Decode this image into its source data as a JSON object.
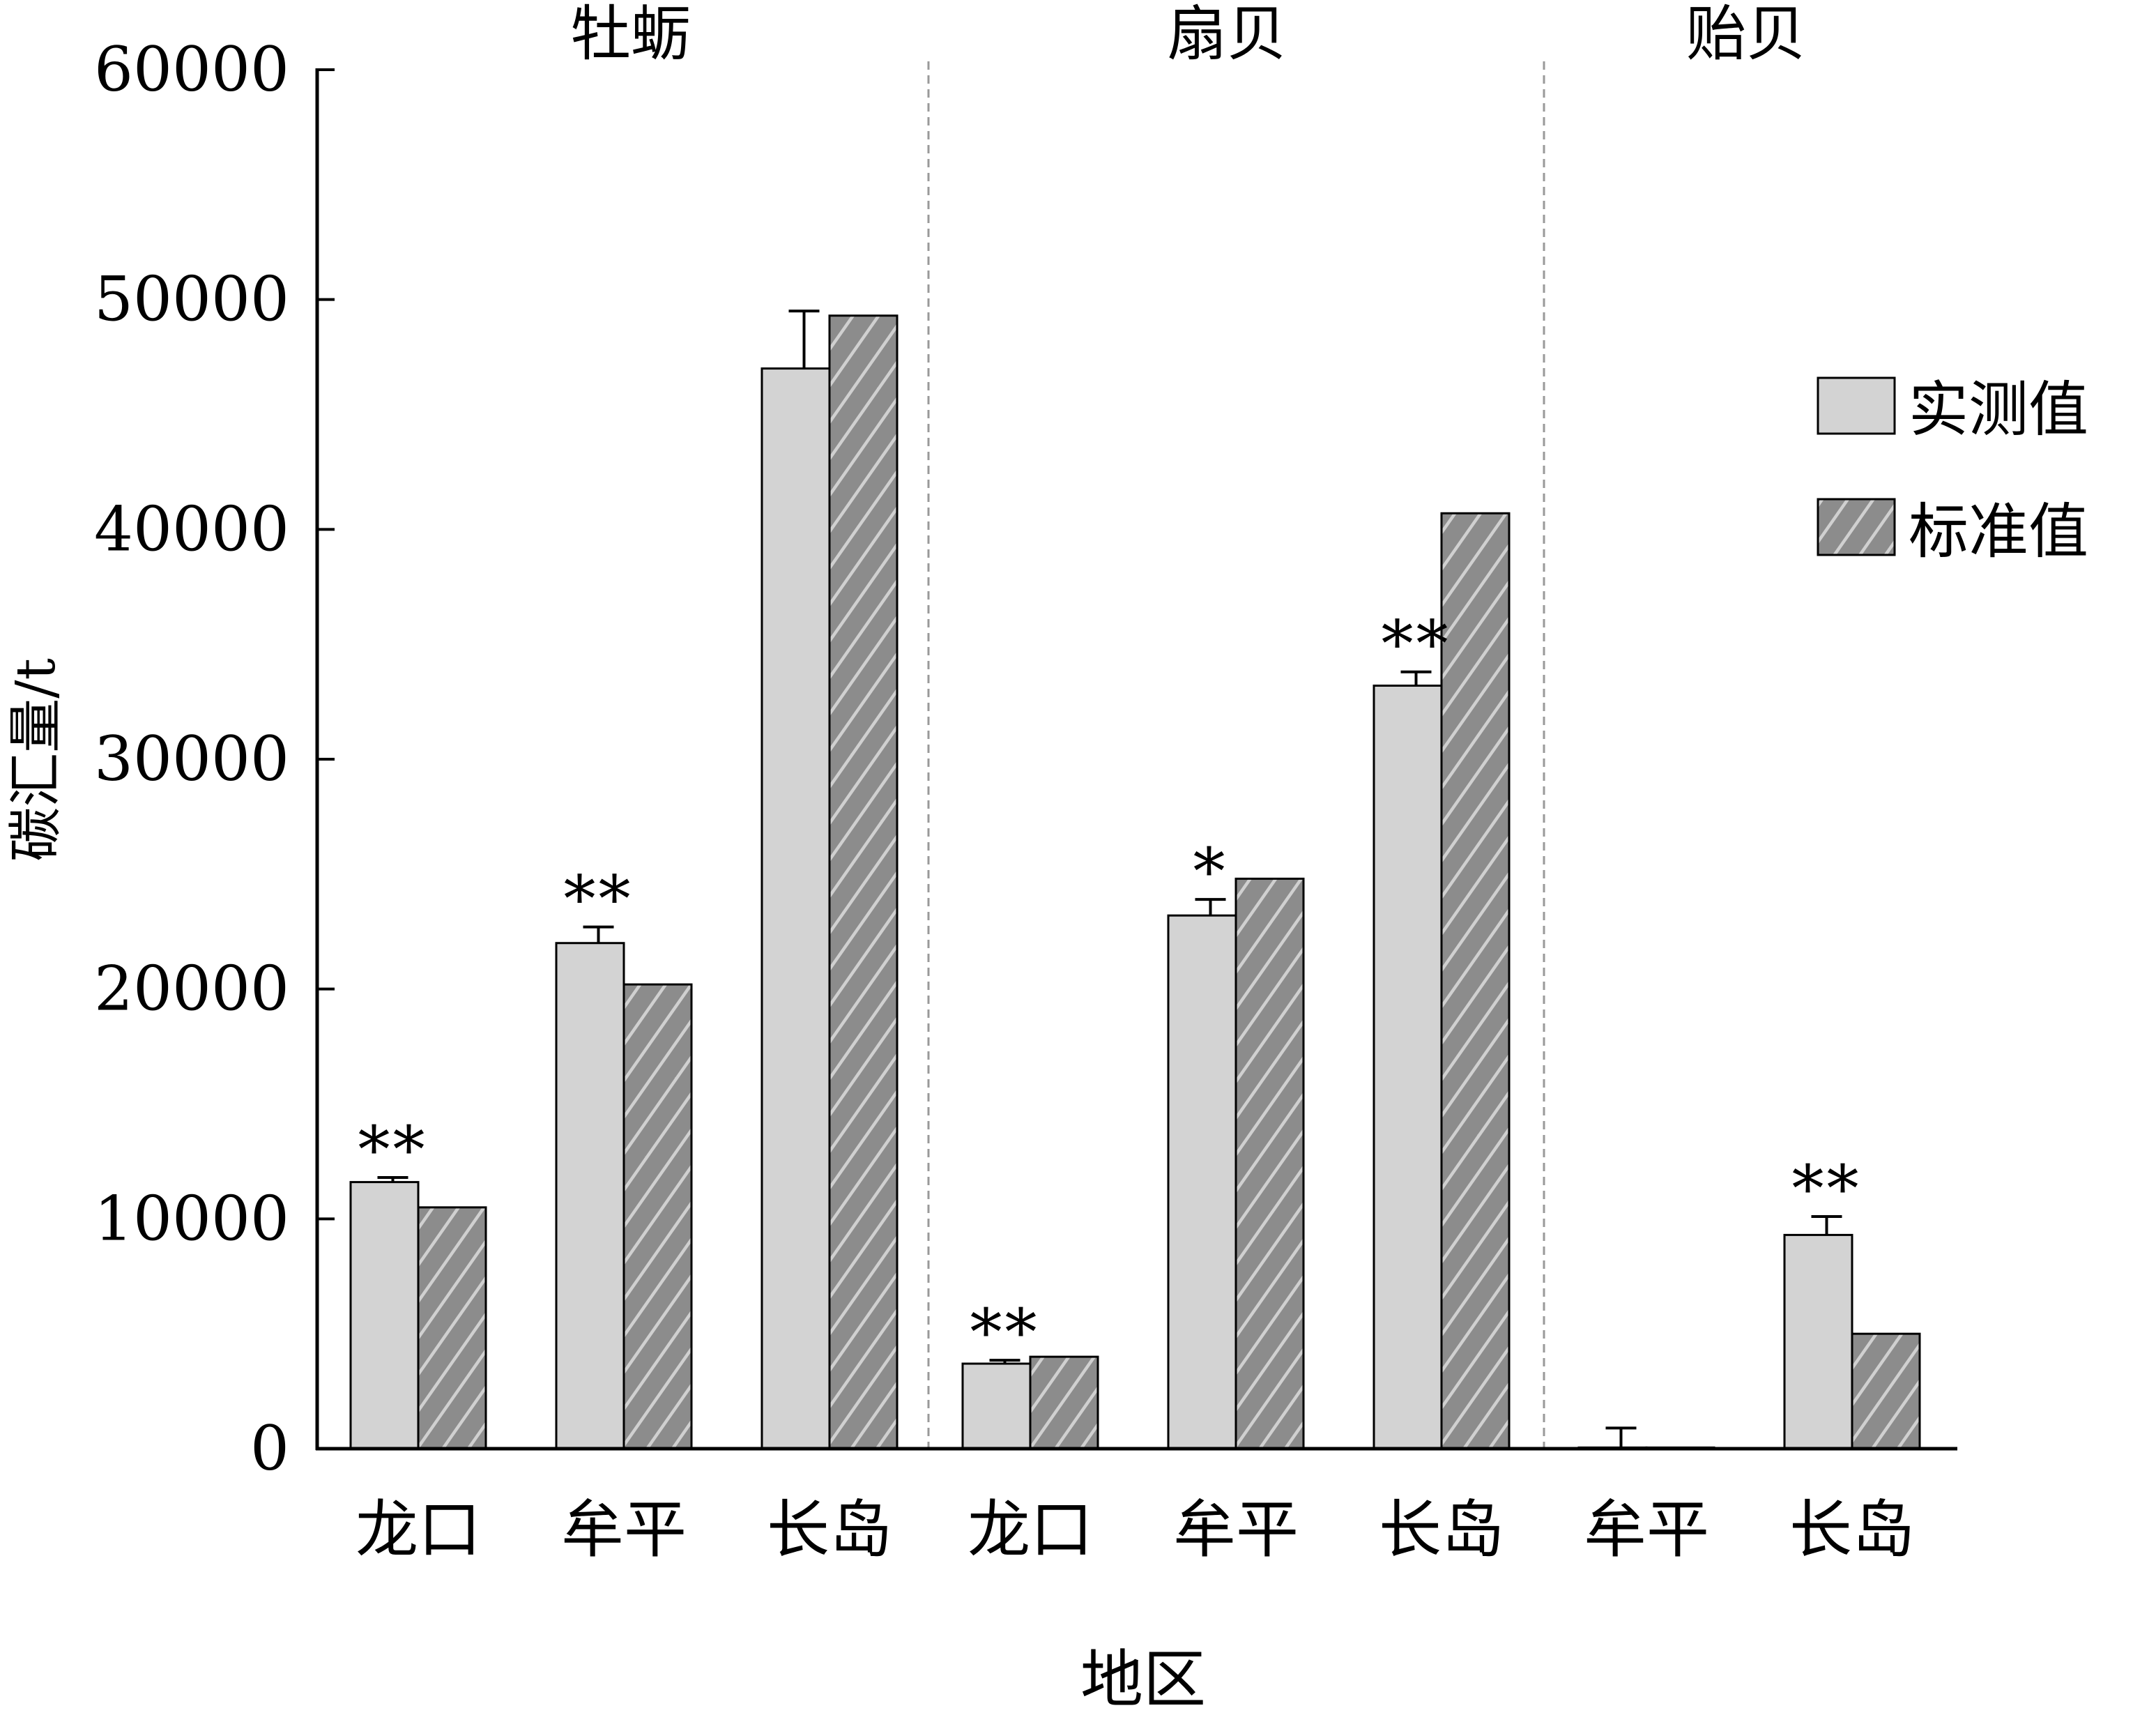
{
  "chart_data": {
    "type": "bar",
    "ylabel": "碳汇量/t",
    "xlabel": "地区",
    "ylim": [
      0,
      60000
    ],
    "yticks": [
      0,
      10000,
      20000,
      30000,
      40000,
      50000,
      60000
    ],
    "ytick_labels": [
      "0",
      "10000",
      "20000",
      "30000",
      "40000",
      "50000",
      "60000"
    ],
    "groups": [
      {
        "label": "牡蛎",
        "categories": [
          "龙口",
          "牟平",
          "长岛"
        ]
      },
      {
        "label": "扇贝",
        "categories": [
          "龙口",
          "牟平",
          "长岛"
        ]
      },
      {
        "label": "贻贝",
        "categories": [
          "牟平",
          "长岛"
        ]
      }
    ],
    "series": [
      {
        "name": "实测值",
        "values": [
          11600,
          22000,
          47000,
          3700,
          23200,
          33200,
          50,
          9300
        ],
        "errors": [
          200,
          700,
          2500,
          150,
          700,
          600,
          850,
          800
        ]
      },
      {
        "name": "标准值",
        "values": [
          10500,
          20200,
          49300,
          4000,
          24800,
          40700,
          50,
          5000
        ]
      }
    ],
    "significance": [
      "**",
      "**",
      "",
      "**",
      "*",
      "**",
      "",
      "**"
    ],
    "legend_position": "right",
    "grid": false,
    "colors": {
      "measured": "#d3d3d3",
      "standard": "#8c8c8c",
      "hatch": "#d0d0d0",
      "axis": "#000000",
      "divider": "#999999"
    }
  }
}
